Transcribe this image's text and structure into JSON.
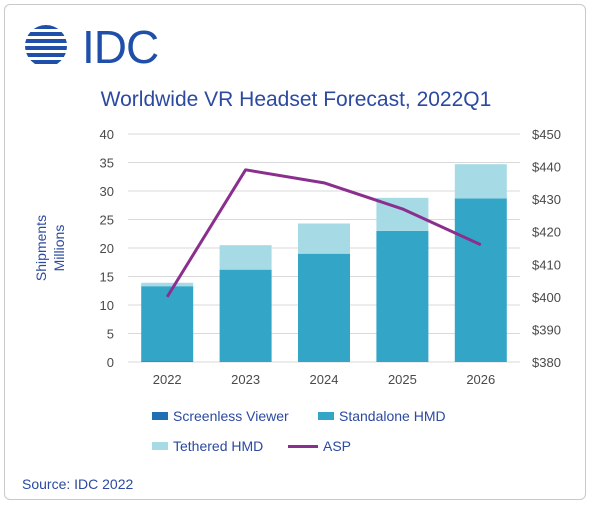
{
  "logo": {
    "text": "IDC"
  },
  "chart_data": {
    "type": "bar",
    "title": "Worldwide VR Headset Forecast, 2022Q1",
    "ylabel": "Shipments\nMillions",
    "categories": [
      "2022",
      "2023",
      "2024",
      "2025",
      "2026"
    ],
    "ylim": [
      0,
      40
    ],
    "yticks": [
      0,
      5,
      10,
      15,
      20,
      25,
      30,
      35,
      40
    ],
    "y2lim": [
      380,
      450
    ],
    "y2ticks": [
      "$380",
      "$390",
      "$400",
      "$410",
      "$420",
      "$430",
      "$440",
      "$450"
    ],
    "y2tick_values": [
      380,
      390,
      400,
      410,
      420,
      430,
      440,
      450
    ],
    "stacked": true,
    "series": [
      {
        "name": "Screenless Viewer",
        "axis": "left",
        "color": "#1f6fb2",
        "values": [
          0.1,
          0.0,
          0.0,
          0.0,
          0.0
        ]
      },
      {
        "name": "Standalone HMD",
        "axis": "left",
        "color": "#33a6c8",
        "values": [
          13.2,
          16.2,
          19.0,
          23.0,
          28.7
        ]
      },
      {
        "name": "Tethered HMD",
        "axis": "left",
        "color": "#a6dbe6",
        "values": [
          0.6,
          4.3,
          5.3,
          5.8,
          6.0
        ]
      },
      {
        "name": "ASP",
        "axis": "right",
        "type": "line",
        "color": "#8a2f8e",
        "values": [
          400,
          439,
          435,
          427,
          416
        ]
      }
    ],
    "grid": true,
    "legend_position": "bottom"
  },
  "source": "Source: IDC 2022"
}
